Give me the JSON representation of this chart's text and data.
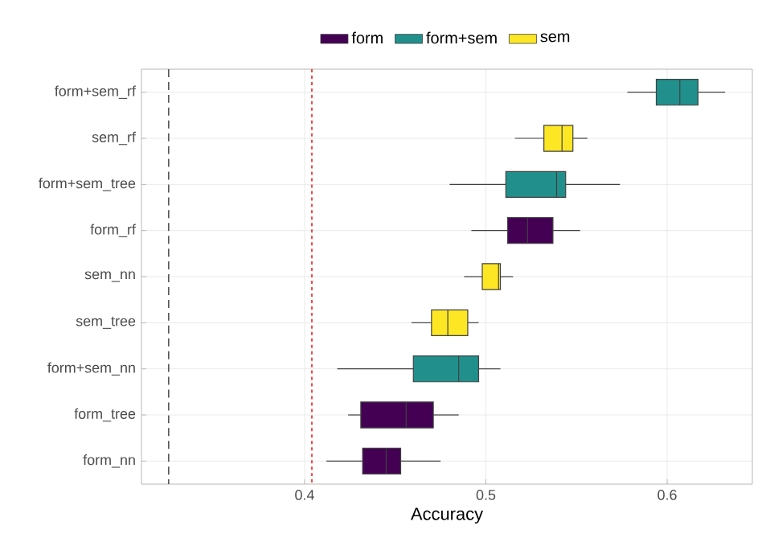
{
  "chart_data": {
    "type": "box",
    "orientation": "horizontal",
    "xlabel": "Accuracy",
    "categories": [
      "form+sem_rf",
      "sem_rf",
      "form+sem_tree",
      "form_rf",
      "sem_nn",
      "sem_tree",
      "form+sem_nn",
      "form_tree",
      "form_nn"
    ],
    "xlim": [
      0.31,
      0.647
    ],
    "xticks": [
      0.4,
      0.5,
      0.6
    ],
    "grid": true,
    "legend": "top",
    "series": [
      {
        "name": "form",
        "color": "#440154",
        "boxes": [
          null,
          null,
          null,
          {
            "low": 0.492,
            "q1": 0.512,
            "median": 0.523,
            "q3": 0.537,
            "high": 0.552
          },
          null,
          null,
          null,
          {
            "low": 0.424,
            "q1": 0.431,
            "median": 0.456,
            "q3": 0.471,
            "high": 0.485
          },
          {
            "low": 0.412,
            "q1": 0.432,
            "median": 0.445,
            "q3": 0.453,
            "high": 0.475
          }
        ]
      },
      {
        "name": "form+sem",
        "color": "#21908c",
        "boxes": [
          {
            "low": 0.578,
            "q1": 0.594,
            "median": 0.607,
            "q3": 0.617,
            "high": 0.632
          },
          null,
          {
            "low": 0.48,
            "q1": 0.511,
            "median": 0.539,
            "q3": 0.544,
            "high": 0.574
          },
          null,
          null,
          null,
          {
            "low": 0.418,
            "q1": 0.46,
            "median": 0.485,
            "q3": 0.496,
            "high": 0.508
          },
          null,
          null
        ]
      },
      {
        "name": "sem",
        "color": "#fde725",
        "boxes": [
          null,
          {
            "low": 0.516,
            "q1": 0.532,
            "median": 0.542,
            "q3": 0.548,
            "high": 0.556
          },
          null,
          null,
          {
            "low": 0.488,
            "q1": 0.498,
            "median": 0.507,
            "q3": 0.508,
            "high": 0.515
          },
          {
            "low": 0.459,
            "q1": 0.47,
            "median": 0.479,
            "q3": 0.49,
            "high": 0.496
          },
          null,
          null,
          null
        ]
      }
    ],
    "ref_lines": [
      {
        "axis": "x",
        "value": 0.325,
        "color": "#555555",
        "line_style": "dashed"
      },
      {
        "axis": "x",
        "value": 0.404,
        "color": "#ee2222",
        "line_style": "dotted"
      }
    ]
  }
}
